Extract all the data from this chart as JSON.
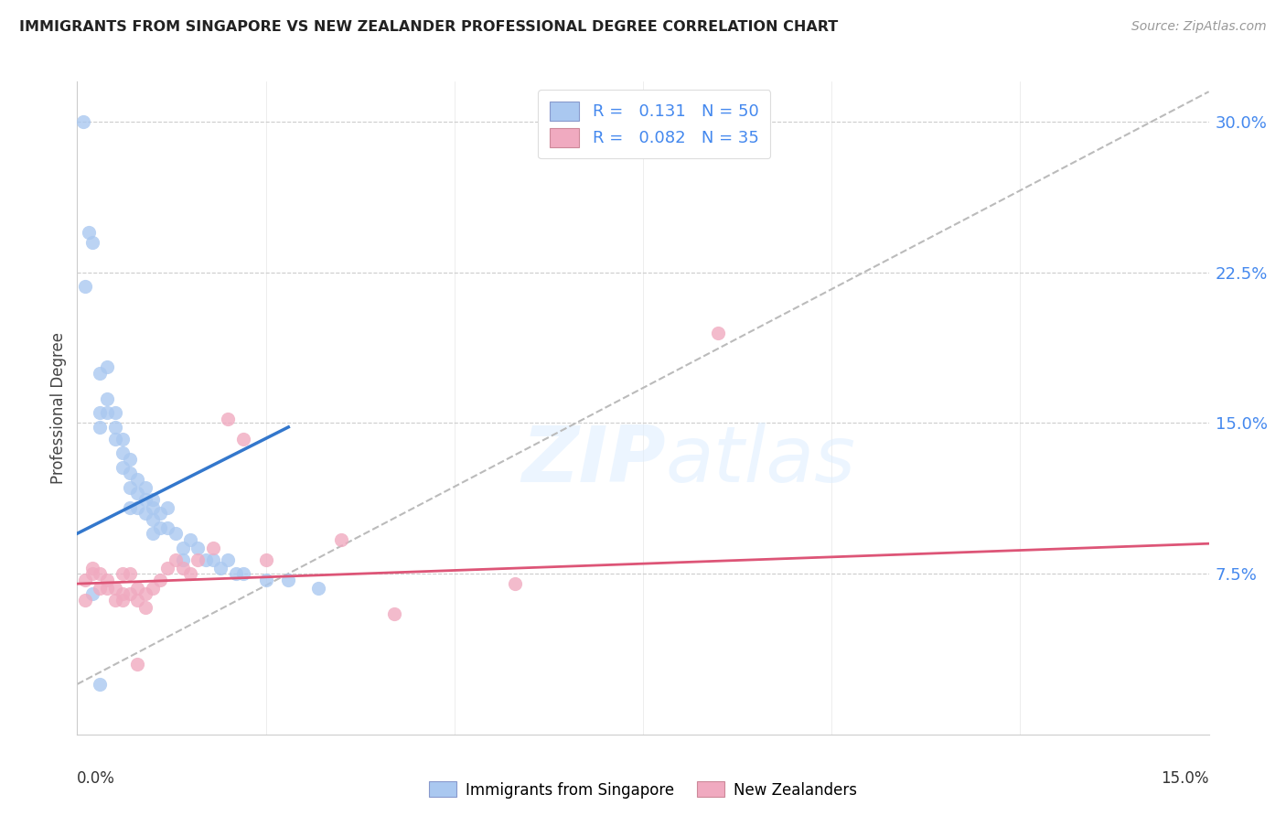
{
  "title": "IMMIGRANTS FROM SINGAPORE VS NEW ZEALANDER PROFESSIONAL DEGREE CORRELATION CHART",
  "source": "Source: ZipAtlas.com",
  "ylabel": "Professional Degree",
  "right_yticks": [
    "7.5%",
    "15.0%",
    "22.5%",
    "30.0%"
  ],
  "right_ytick_vals": [
    0.075,
    0.15,
    0.225,
    0.3
  ],
  "color_blue": "#aac8f0",
  "color_pink": "#f0aac0",
  "line_blue": "#3377cc",
  "line_pink": "#dd5577",
  "line_dashed": "#bbbbbb",
  "legend_label1": "Immigrants from Singapore",
  "legend_label2": "New Zealanders",
  "blue_scatter_x": [
    0.0008,
    0.001,
    0.0015,
    0.002,
    0.003,
    0.003,
    0.003,
    0.004,
    0.004,
    0.004,
    0.005,
    0.005,
    0.005,
    0.006,
    0.006,
    0.006,
    0.007,
    0.007,
    0.007,
    0.007,
    0.008,
    0.008,
    0.008,
    0.009,
    0.009,
    0.009,
    0.01,
    0.01,
    0.01,
    0.01,
    0.011,
    0.011,
    0.012,
    0.012,
    0.013,
    0.014,
    0.014,
    0.015,
    0.016,
    0.017,
    0.018,
    0.019,
    0.02,
    0.021,
    0.022,
    0.025,
    0.028,
    0.032,
    0.002,
    0.003
  ],
  "blue_scatter_y": [
    0.3,
    0.218,
    0.245,
    0.24,
    0.175,
    0.155,
    0.148,
    0.178,
    0.162,
    0.155,
    0.155,
    0.148,
    0.142,
    0.142,
    0.135,
    0.128,
    0.132,
    0.125,
    0.118,
    0.108,
    0.122,
    0.115,
    0.108,
    0.118,
    0.112,
    0.105,
    0.112,
    0.108,
    0.102,
    0.095,
    0.105,
    0.098,
    0.108,
    0.098,
    0.095,
    0.088,
    0.082,
    0.092,
    0.088,
    0.082,
    0.082,
    0.078,
    0.082,
    0.075,
    0.075,
    0.072,
    0.072,
    0.068,
    0.065,
    0.02
  ],
  "pink_scatter_x": [
    0.001,
    0.002,
    0.003,
    0.003,
    0.004,
    0.005,
    0.005,
    0.006,
    0.006,
    0.007,
    0.007,
    0.008,
    0.008,
    0.009,
    0.009,
    0.01,
    0.011,
    0.012,
    0.013,
    0.014,
    0.015,
    0.016,
    0.018,
    0.02,
    0.022,
    0.025,
    0.035,
    0.042,
    0.058,
    0.085,
    0.001,
    0.002,
    0.004,
    0.006,
    0.008
  ],
  "pink_scatter_y": [
    0.072,
    0.075,
    0.075,
    0.068,
    0.068,
    0.068,
    0.062,
    0.075,
    0.062,
    0.075,
    0.065,
    0.068,
    0.062,
    0.065,
    0.058,
    0.068,
    0.072,
    0.078,
    0.082,
    0.078,
    0.075,
    0.082,
    0.088,
    0.152,
    0.142,
    0.082,
    0.092,
    0.055,
    0.07,
    0.195,
    0.062,
    0.078,
    0.072,
    0.065,
    0.03
  ],
  "xlim": [
    0.0,
    0.15
  ],
  "ylim": [
    -0.005,
    0.32
  ],
  "blue_line_x": [
    0.0,
    0.028
  ],
  "blue_line_y": [
    0.095,
    0.148
  ],
  "pink_line_x": [
    0.0,
    0.15
  ],
  "pink_line_y": [
    0.07,
    0.09
  ],
  "dashed_line_x": [
    0.0,
    0.15
  ],
  "dashed_line_y": [
    0.02,
    0.315
  ]
}
